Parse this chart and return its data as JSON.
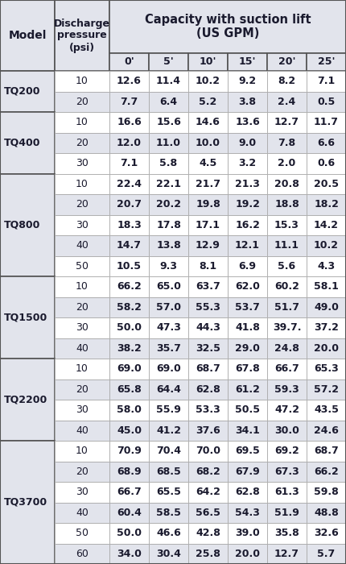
{
  "rows": [
    [
      "TQ200",
      "10",
      "12.6",
      "11.4",
      "10.2",
      "9.2",
      "8.2",
      "7.1"
    ],
    [
      "TQ200",
      "20",
      "7.7",
      "6.4",
      "5.2",
      "3.8",
      "2.4",
      "0.5"
    ],
    [
      "TQ400",
      "10",
      "16.6",
      "15.6",
      "14.6",
      "13.6",
      "12.7",
      "11.7"
    ],
    [
      "TQ400",
      "20",
      "12.0",
      "11.0",
      "10.0",
      "9.0",
      "7.8",
      "6.6"
    ],
    [
      "TQ400",
      "30",
      "7.1",
      "5.8",
      "4.5",
      "3.2",
      "2.0",
      "0.6"
    ],
    [
      "TQ800",
      "10",
      "22.4",
      "22.1",
      "21.7",
      "21.3",
      "20.8",
      "20.5"
    ],
    [
      "TQ800",
      "20",
      "20.7",
      "20.2",
      "19.8",
      "19.2",
      "18.8",
      "18.2"
    ],
    [
      "TQ800",
      "30",
      "18.3",
      "17.8",
      "17.1",
      "16.2",
      "15.3",
      "14.2"
    ],
    [
      "TQ800",
      "40",
      "14.7",
      "13.8",
      "12.9",
      "12.1",
      "11.1",
      "10.2"
    ],
    [
      "TQ800",
      "50",
      "10.5",
      "9.3",
      "8.1",
      "6.9",
      "5.6",
      "4.3"
    ],
    [
      "TQ1500",
      "10",
      "66.2",
      "65.0",
      "63.7",
      "62.0",
      "60.2",
      "58.1"
    ],
    [
      "TQ1500",
      "20",
      "58.2",
      "57.0",
      "55.3",
      "53.7",
      "51.7",
      "49.0"
    ],
    [
      "TQ1500",
      "30",
      "50.0",
      "47.3",
      "44.3",
      "41.8",
      "39.7.",
      "37.2"
    ],
    [
      "TQ1500",
      "40",
      "38.2",
      "35.7",
      "32.5",
      "29.0",
      "24.8",
      "20.0"
    ],
    [
      "TQ2200",
      "10",
      "69.0",
      "69.0",
      "68.7",
      "67.8",
      "66.7",
      "65.3"
    ],
    [
      "TQ2200",
      "20",
      "65.8",
      "64.4",
      "62.8",
      "61.2",
      "59.3",
      "57.2"
    ],
    [
      "TQ2200",
      "30",
      "58.0",
      "55.9",
      "53.3",
      "50.5",
      "47.2",
      "43.5"
    ],
    [
      "TQ2200",
      "40",
      "45.0",
      "41.2",
      "37.6",
      "34.1",
      "30.0",
      "24.6"
    ],
    [
      "TQ3700",
      "10",
      "70.9",
      "70.4",
      "70.0",
      "69.5",
      "69.2",
      "68.7"
    ],
    [
      "TQ3700",
      "20",
      "68.9",
      "68.5",
      "68.2",
      "67.9",
      "67.3",
      "66.2"
    ],
    [
      "TQ3700",
      "30",
      "66.7",
      "65.5",
      "64.2",
      "62.8",
      "61.3",
      "59.8"
    ],
    [
      "TQ3700",
      "40",
      "60.4",
      "58.5",
      "56.5",
      "54.3",
      "51.9",
      "48.8"
    ],
    [
      "TQ3700",
      "50",
      "50.0",
      "46.6",
      "42.8",
      "39.0",
      "35.8",
      "32.6"
    ],
    [
      "TQ3700",
      "60",
      "34.0",
      "30.4",
      "25.8",
      "20.0",
      "12.7",
      "5.7"
    ]
  ],
  "lift_labels": [
    "0'",
    "5'",
    "10'",
    "15'",
    "20'",
    "25'"
  ],
  "bg_light": "#e2e4ec",
  "bg_white": "#ffffff",
  "border_light": "#aaaaaa",
  "border_dark": "#555555",
  "text_color": "#1a1a2e"
}
